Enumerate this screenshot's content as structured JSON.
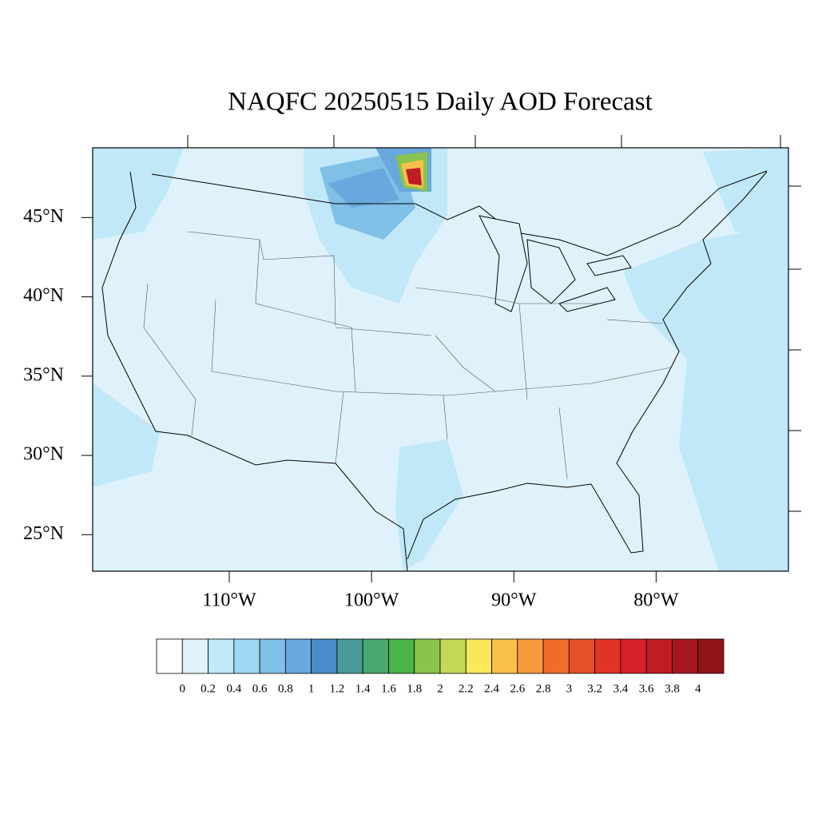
{
  "title": "NAQFC 20250515 Daily AOD Forecast",
  "map": {
    "lonlim": [
      -119.6,
      -70.7
    ],
    "latlim": [
      22.7,
      49.4
    ],
    "lat_ticks": [
      {
        "value": 45,
        "label": "45°N"
      },
      {
        "value": 40,
        "label": "40°N"
      },
      {
        "value": 35,
        "label": "35°N"
      },
      {
        "value": 30,
        "label": "30°N"
      },
      {
        "value": 25,
        "label": "25°N"
      }
    ],
    "lon_ticks": [
      {
        "value": -110,
        "label": "110°W"
      },
      {
        "value": -100,
        "label": "100°W"
      },
      {
        "value": -90,
        "label": "90°W"
      },
      {
        "value": -80,
        "label": "80°W"
      }
    ]
  },
  "colorbar": {
    "levels": [
      0,
      0.2,
      0.4,
      0.6,
      0.8,
      1,
      1.2,
      1.4,
      1.6,
      1.8,
      2,
      2.2,
      2.4,
      2.6,
      2.8,
      3,
      3.2,
      3.4,
      3.6,
      3.8,
      4
    ],
    "colors": [
      "#ffffff",
      "#e0f3fb",
      "#c0e8f8",
      "#a0d8f3",
      "#80bfe6",
      "#68a8dc",
      "#4a8cca",
      "#4a9a9a",
      "#48a870",
      "#4ab34a",
      "#88c44e",
      "#c4d858",
      "#f8e85a",
      "#f8c04a",
      "#f89a3c",
      "#f06c2c",
      "#e85028",
      "#e03426",
      "#d82028",
      "#c01c24",
      "#a81820",
      "#901418"
    ]
  }
}
